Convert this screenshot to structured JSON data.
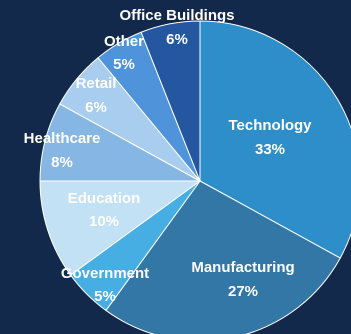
{
  "chart_data": {
    "type": "pie",
    "title": "",
    "slices": [
      {
        "label": "Technology",
        "value_label": "33%",
        "value": 33,
        "color": "#2e8ec9"
      },
      {
        "label": "Manufacturing",
        "value_label": "27%",
        "value": 27,
        "color": "#3377a6"
      },
      {
        "label": "Government",
        "value_label": "5%",
        "value": 5,
        "color": "#46aee2"
      },
      {
        "label": "Education",
        "value_label": "10%",
        "value": 10,
        "color": "#c3e1f4"
      },
      {
        "label": "Healthcare",
        "value_label": "8%",
        "value": 8,
        "color": "#86b7e4"
      },
      {
        "label": "Retail",
        "value_label": "6%",
        "value": 6,
        "color": "#a9cdef"
      },
      {
        "label": "Other",
        "value_label": "5%",
        "value": 5,
        "color": "#4f93db"
      },
      {
        "label": "Office Buildings",
        "value_label": "6%",
        "value": 6,
        "color": "#2457a0"
      }
    ],
    "start": "top, clockwise",
    "legend": "none, labels on slices"
  },
  "colors": {
    "background": "#13294b",
    "label_text": "#ffffff",
    "slice_border": "#ffffff"
  }
}
